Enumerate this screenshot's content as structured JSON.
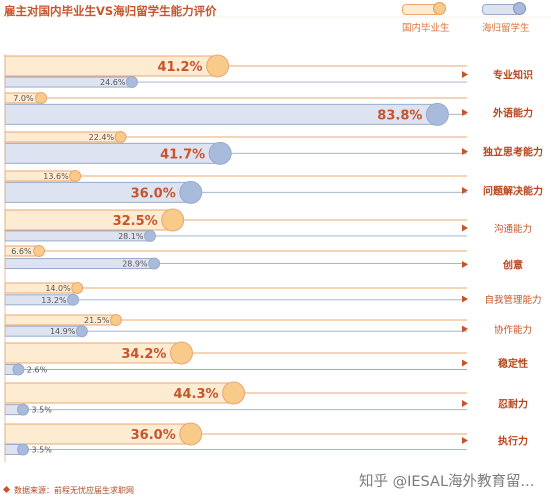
{
  "chart_data": {
    "type": "bar",
    "title": "雇主对国内毕业生VS海归留学生能力评价",
    "categories": [
      "专业知识",
      "外语能力",
      "独立思考能力",
      "问题解决能力",
      "沟通能力",
      "创意",
      "自我管理能力",
      "协作能力",
      "稳定性",
      "忍耐力",
      "执行力"
    ],
    "emphasized": [
      true,
      true,
      true,
      true,
      false,
      true,
      false,
      false,
      true,
      true,
      true
    ],
    "series": [
      {
        "name": "国内毕业生",
        "values": [
          41.2,
          7.0,
          22.4,
          13.6,
          32.5,
          6.6,
          14.0,
          21.5,
          34.2,
          44.3,
          36.0
        ],
        "bar_color": "#fdebd2",
        "edge_color": "#eba76f",
        "dot_color": "#f8cb8a"
      },
      {
        "name": "海归留学生",
        "values": [
          24.6,
          83.8,
          41.7,
          36.0,
          28.1,
          28.9,
          13.2,
          14.9,
          2.6,
          3.5,
          3.5
        ],
        "bar_color": "#dde3f1",
        "edge_color": "#9aabc9",
        "dot_color": "#a9bbdc"
      }
    ],
    "labels": {
      "domestic": [
        "41.2%",
        "7.0%",
        "22.4%",
        "13.6%",
        "32.5%",
        "6.6%",
        "14.0%",
        "21.5%",
        "34.2%",
        "44.3%",
        "36.0%"
      ],
      "overseas": [
        "24.6%",
        "83.8%",
        "41.7%",
        "36.0%",
        "28.1%",
        "28.9%",
        "13.2%",
        "14.9%",
        "2.6%",
        "3.5%",
        "3.5%"
      ]
    },
    "xlim": [
      0,
      100
    ],
    "legend": "top-right",
    "grid": false
  },
  "header": {
    "title": "雇主对国内毕业生VS海归留学生能力评价"
  },
  "legend": {
    "domestic": "国内毕业生",
    "overseas": "海归留学生"
  },
  "footer": {
    "source": "数据来源：前程无忧应届生求职网",
    "watermark": "知乎 @IESAL海外教育留..."
  },
  "colors": {
    "accent": "#c8542c",
    "domestic_fill": "#fdebd2",
    "domestic_dot": "#f8cb8a",
    "overseas_fill": "#dde3f1",
    "overseas_dot": "#a9bbdc"
  }
}
